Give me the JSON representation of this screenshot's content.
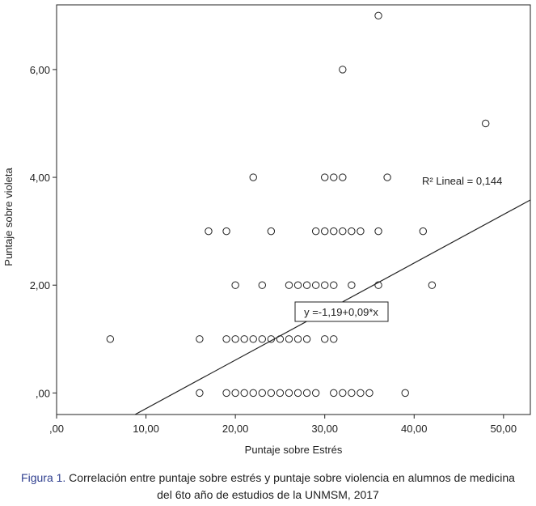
{
  "chart_data": {
    "type": "scatter",
    "xlabel": "Puntaje sobre Estrés",
    "ylabel": "Puntaje sobre violeta",
    "xlim": [
      0,
      53
    ],
    "ylim": [
      -0.4,
      7.2
    ],
    "x_ticks": [
      0,
      10,
      20,
      30,
      40,
      50
    ],
    "x_tick_labels": [
      ",00",
      "10,00",
      "20,00",
      "30,00",
      "40,00",
      "50,00"
    ],
    "y_ticks": [
      0,
      2,
      4,
      6
    ],
    "y_tick_labels": [
      ",00",
      "2,00",
      "4,00",
      "6,00"
    ],
    "grid": false,
    "points": [
      [
        36,
        7
      ],
      [
        32,
        6
      ],
      [
        48,
        5
      ],
      [
        22,
        4
      ],
      [
        30,
        4
      ],
      [
        31,
        4
      ],
      [
        32,
        4
      ],
      [
        37,
        4
      ],
      [
        17,
        3
      ],
      [
        19,
        3
      ],
      [
        24,
        3
      ],
      [
        29,
        3
      ],
      [
        30,
        3
      ],
      [
        31,
        3
      ],
      [
        32,
        3
      ],
      [
        33,
        3
      ],
      [
        34,
        3
      ],
      [
        36,
        3
      ],
      [
        41,
        3
      ],
      [
        20,
        2
      ],
      [
        23,
        2
      ],
      [
        26,
        2
      ],
      [
        27,
        2
      ],
      [
        28,
        2
      ],
      [
        29,
        2
      ],
      [
        30,
        2
      ],
      [
        31,
        2
      ],
      [
        33,
        2
      ],
      [
        36,
        2
      ],
      [
        42,
        2
      ],
      [
        6,
        1
      ],
      [
        16,
        1
      ],
      [
        19,
        1
      ],
      [
        20,
        1
      ],
      [
        21,
        1
      ],
      [
        22,
        1
      ],
      [
        23,
        1
      ],
      [
        24,
        1
      ],
      [
        25,
        1
      ],
      [
        26,
        1
      ],
      [
        27,
        1
      ],
      [
        28,
        1
      ],
      [
        30,
        1
      ],
      [
        31,
        1
      ],
      [
        16,
        0
      ],
      [
        19,
        0
      ],
      [
        20,
        0
      ],
      [
        21,
        0
      ],
      [
        22,
        0
      ],
      [
        23,
        0
      ],
      [
        24,
        0
      ],
      [
        25,
        0
      ],
      [
        26,
        0
      ],
      [
        27,
        0
      ],
      [
        28,
        0
      ],
      [
        29,
        0
      ],
      [
        31,
        0
      ],
      [
        32,
        0
      ],
      [
        33,
        0
      ],
      [
        34,
        0
      ],
      [
        35,
        0
      ],
      [
        39,
        0
      ]
    ],
    "fit_line": {
      "intercept": -1.19,
      "slope": 0.09
    },
    "equation_label": "y =-1,19+0,09*x",
    "r2_label": "R² Lineal = 0,144"
  },
  "caption": {
    "label": "Figura 1.",
    "line1": " Correlación entre puntaje sobre estrés y puntaje sobre violencia en alumnos de medicina",
    "line2": "del 6to año de estudios de la UNMSM, 2017"
  }
}
